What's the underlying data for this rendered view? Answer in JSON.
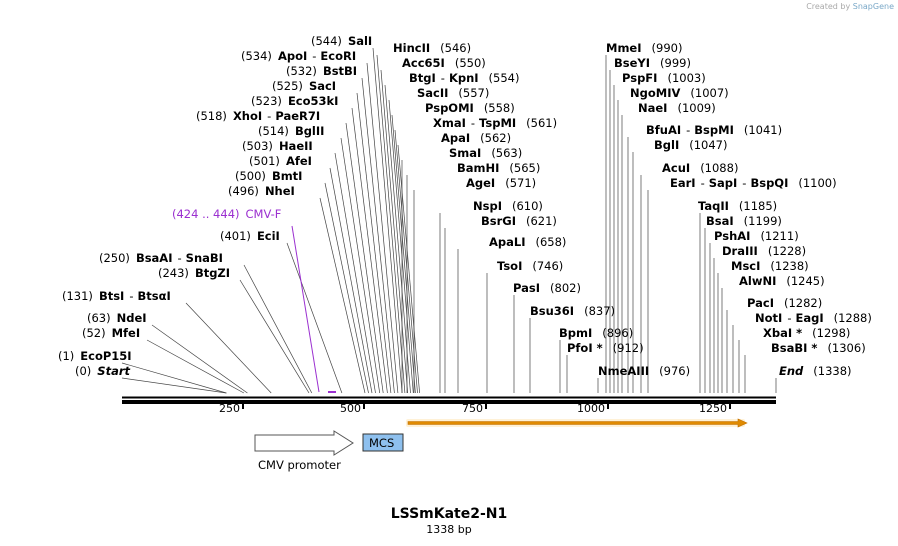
{
  "credit": {
    "prefix": "Created by",
    "brand": "SnapGene"
  },
  "title": "LSSmKate2-N1",
  "subtitle": "1338 bp",
  "sequence_length": 1338,
  "ruler_ticks": [
    "250",
    "500",
    "750",
    "1000",
    "1250"
  ],
  "features": [
    {
      "name": "CMV promoter",
      "type": "promoter",
      "start": 270,
      "end": 470,
      "color": "#ffffff"
    },
    {
      "name": "MCS",
      "type": "misc",
      "start": 490,
      "end": 575,
      "color": "#8ec0ee"
    },
    {
      "name": "",
      "type": "cds",
      "start": 590,
      "end": 1270,
      "color": "#f5a623"
    }
  ],
  "primer": {
    "range": "(424 .. 444)",
    "name": "CMV-F",
    "color": "#9b30d0"
  },
  "sites": [
    {
      "names": [
        "Start"
      ],
      "pos": "(0)",
      "italic": true
    },
    {
      "names": [
        "EcoP15I"
      ],
      "pos": "(1)"
    },
    {
      "names": [
        "MfeI"
      ],
      "pos": "(52)"
    },
    {
      "names": [
        "NdeI"
      ],
      "pos": "(63)"
    },
    {
      "names": [
        "BtsI",
        "BtsαI"
      ],
      "pos": "(131)"
    },
    {
      "names": [
        "BtgZI"
      ],
      "pos": "(243)"
    },
    {
      "names": [
        "BsaAI",
        "SnaBI"
      ],
      "pos": "(250)"
    },
    {
      "names": [
        "EciI"
      ],
      "pos": "(401)"
    },
    {
      "names": [
        "NheI"
      ],
      "pos": "(496)"
    },
    {
      "names": [
        "BmtI"
      ],
      "pos": "(500)"
    },
    {
      "names": [
        "AfeI"
      ],
      "pos": "(501)"
    },
    {
      "names": [
        "HaeII"
      ],
      "pos": "(503)"
    },
    {
      "names": [
        "BglII"
      ],
      "pos": "(514)"
    },
    {
      "names": [
        "XhoI",
        "PaeR7I"
      ],
      "pos": "(518)"
    },
    {
      "names": [
        "Eco53kI"
      ],
      "pos": "(523)"
    },
    {
      "names": [
        "SacI"
      ],
      "pos": "(525)"
    },
    {
      "names": [
        "BstBI"
      ],
      "pos": "(532)"
    },
    {
      "names": [
        "ApoI",
        "EcoRI"
      ],
      "pos": "(534)"
    },
    {
      "names": [
        "SalI"
      ],
      "pos": "(544)"
    },
    {
      "names": [
        "HincII"
      ],
      "pos": "(546)"
    },
    {
      "names": [
        "Acc65I"
      ],
      "pos": "(550)"
    },
    {
      "names": [
        "BtgI",
        "KpnI"
      ],
      "pos": "(554)"
    },
    {
      "names": [
        "SacII"
      ],
      "pos": "(557)"
    },
    {
      "names": [
        "PspOMI"
      ],
      "pos": "(558)"
    },
    {
      "names": [
        "XmaI",
        "TspMI"
      ],
      "pos": "(561)"
    },
    {
      "names": [
        "ApaI"
      ],
      "pos": "(562)"
    },
    {
      "names": [
        "SmaI"
      ],
      "pos": "(563)"
    },
    {
      "names": [
        "BamHI"
      ],
      "pos": "(565)"
    },
    {
      "names": [
        "AgeI"
      ],
      "pos": "(571)"
    },
    {
      "names": [
        "NspI"
      ],
      "pos": "(610)"
    },
    {
      "names": [
        "BsrGI"
      ],
      "pos": "(621)"
    },
    {
      "names": [
        "ApaLI"
      ],
      "pos": "(658)"
    },
    {
      "names": [
        "TsoI"
      ],
      "pos": "(746)"
    },
    {
      "names": [
        "PasI"
      ],
      "pos": "(802)"
    },
    {
      "names": [
        "Bsu36I"
      ],
      "pos": "(837)"
    },
    {
      "names": [
        "BpmI"
      ],
      "pos": "(896)"
    },
    {
      "names": [
        "PfoI *"
      ],
      "pos": "(912)"
    },
    {
      "names": [
        "MmeI"
      ],
      "pos": "(990)"
    },
    {
      "names": [
        "BseYI"
      ],
      "pos": "(999)"
    },
    {
      "names": [
        "PspFI"
      ],
      "pos": "(1003)"
    },
    {
      "names": [
        "NgoMIV"
      ],
      "pos": "(1007)"
    },
    {
      "names": [
        "NaeI"
      ],
      "pos": "(1009)"
    },
    {
      "names": [
        "BfuAI",
        "BspMI"
      ],
      "pos": "(1041)"
    },
    {
      "names": [
        "BglI"
      ],
      "pos": "(1047)"
    },
    {
      "names": [
        "AcuI"
      ],
      "pos": "(1088)"
    },
    {
      "names": [
        "EarI",
        "SapI",
        "BspQI"
      ],
      "pos": "(1100)"
    },
    {
      "names": [
        "NmeAIII"
      ],
      "pos": "(976)"
    },
    {
      "names": [
        "TaqII"
      ],
      "pos": "(1185)"
    },
    {
      "names": [
        "BsaI"
      ],
      "pos": "(1199)"
    },
    {
      "names": [
        "PshAI"
      ],
      "pos": "(1211)"
    },
    {
      "names": [
        "DraIII"
      ],
      "pos": "(1228)"
    },
    {
      "names": [
        "MscI"
      ],
      "pos": "(1238)"
    },
    {
      "names": [
        "AlwNI"
      ],
      "pos": "(1245)"
    },
    {
      "names": [
        "PacI"
      ],
      "pos": "(1282)"
    },
    {
      "names": [
        "NotI",
        "EagI"
      ],
      "pos": "(1288)"
    },
    {
      "names": [
        "XbaI *"
      ],
      "pos": "(1298)"
    },
    {
      "names": [
        "BsaBI *"
      ],
      "pos": "(1306)"
    },
    {
      "names": [
        "End"
      ],
      "pos": "(1338)",
      "italic": true
    }
  ]
}
